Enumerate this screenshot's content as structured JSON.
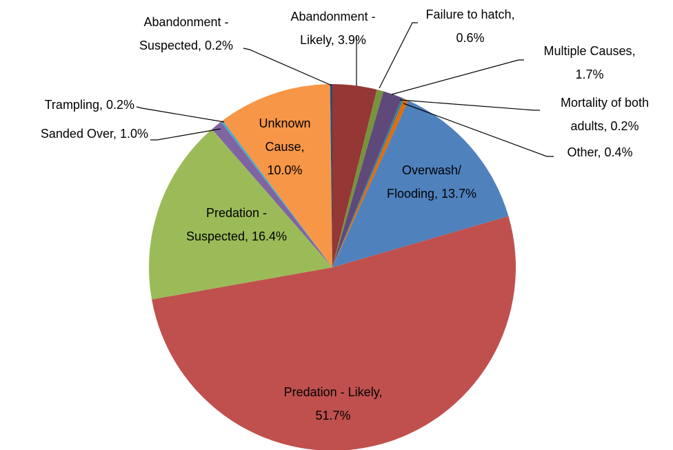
{
  "chart_data": {
    "type": "pie",
    "values": [
      3.9,
      0.6,
      1.7,
      0.2,
      0.4,
      13.7,
      51.7,
      16.4,
      1.0,
      0.2,
      10.0,
      0.2
    ],
    "value_labels": [
      "Abandonment - Likely, 3.9%",
      "Failure to hatch, 0.6%",
      "Multiple Causes, 1.7%",
      "Mortality of both adults, 0.2%",
      "Other, 0.4%",
      "Overwash/ Flooding, 13.7%",
      "Predation - Likely, 51.7%",
      "Predation - Suspected, 16.4%",
      "Sanded Over, 1.0%",
      "Trampling, 0.2%",
      "Unknown Cause, 10.0%",
      "Abandonment - Suspected, 0.2%"
    ],
    "colors": [
      "#953735",
      "#77933c",
      "#5f497a",
      "#31859c",
      "#e46c0a",
      "#4f81bd",
      "#c0504d",
      "#9bbb59",
      "#8064a2",
      "#4bacc6",
      "#f79646",
      "#2c4d75"
    ]
  }
}
